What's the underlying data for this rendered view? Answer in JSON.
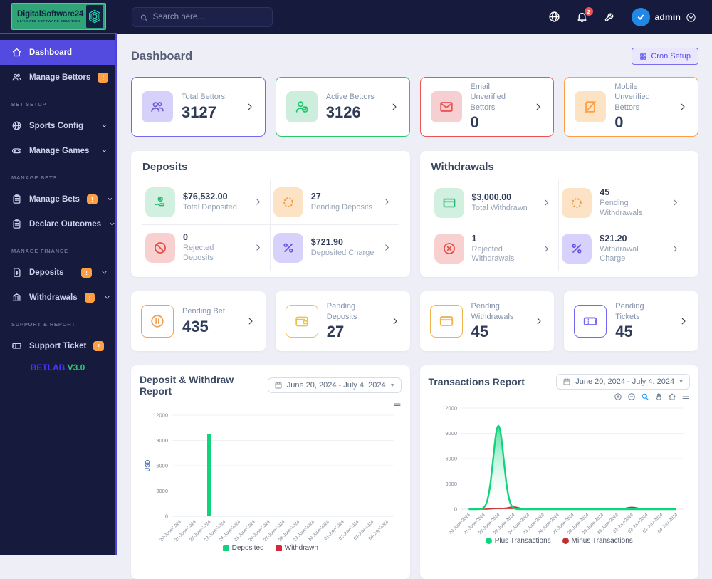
{
  "navbar": {
    "logo_title": "DigitalSoftware24",
    "logo_subtitle": "ULTIMATE SOFTWARE SOLUTION",
    "search_placeholder": "Search here...",
    "notification_count": "2",
    "user_name": "admin"
  },
  "sidebar": {
    "items": [
      {
        "label": "Dashboard",
        "icon": "home",
        "active": true
      },
      {
        "label": "Manage Bettors",
        "icon": "users-group",
        "badge": "!",
        "expandable": true
      },
      {
        "section": "BET SETUP"
      },
      {
        "label": "Sports Config",
        "icon": "globe",
        "expandable": true
      },
      {
        "label": "Manage Games",
        "icon": "gamepad",
        "expandable": true
      },
      {
        "section": "MANAGE BETS"
      },
      {
        "label": "Manage Bets",
        "icon": "clipboard",
        "badge": "!",
        "expandable": true
      },
      {
        "label": "Declare Outcomes",
        "icon": "clipboard",
        "expandable": true
      },
      {
        "section": "MANAGE FINANCE"
      },
      {
        "label": "Deposits",
        "icon": "file-dollar",
        "badge": "!",
        "expandable": true
      },
      {
        "label": "Withdrawals",
        "icon": "bank",
        "badge": "!",
        "expandable": true
      },
      {
        "section": "SUPPORT & REPORT"
      },
      {
        "label": "Support Ticket",
        "icon": "ticket",
        "badge": "!",
        "expandable": true
      }
    ],
    "footer_brand": "BETLAB",
    "footer_version": "V3.0"
  },
  "page": {
    "title": "Dashboard",
    "cron_button_label": "Cron Setup"
  },
  "stats": [
    {
      "label": "Total Bettors",
      "value": "3127",
      "color": "purple",
      "icon": "users-group"
    },
    {
      "label": "Active Bettors",
      "value": "3126",
      "color": "green",
      "icon": "user-check"
    },
    {
      "label": "Email Unverified Bettors",
      "value": "0",
      "color": "red",
      "icon": "envelope"
    },
    {
      "label": "Mobile Unverified Bettors",
      "value": "0",
      "color": "orange",
      "icon": "mobile-slash"
    }
  ],
  "panels": [
    {
      "title": "Deposits",
      "items": [
        {
          "value": "$76,532.00",
          "label": "Total Deposited",
          "icon": "hand-money",
          "tone": "green"
        },
        {
          "value": "27",
          "label": "Pending Deposits",
          "icon": "spinner",
          "tone": "orange"
        },
        {
          "value": "0",
          "label": "Rejected Deposits",
          "icon": "ban",
          "tone": "red"
        },
        {
          "value": "$721.90",
          "label": "Deposited Charge",
          "icon": "percent",
          "tone": "purple"
        }
      ]
    },
    {
      "title": "Withdrawals",
      "items": [
        {
          "value": "$3,000.00",
          "label": "Total Withdrawn",
          "icon": "credit-card",
          "tone": "green"
        },
        {
          "value": "45",
          "label": "Pending Withdrawals",
          "icon": "spinner",
          "tone": "orange"
        },
        {
          "value": "1",
          "label": "Rejected Withdrawals",
          "icon": "x-circle",
          "tone": "red"
        },
        {
          "value": "$21.20",
          "label": "Withdrawal Charge",
          "icon": "percent",
          "tone": "purple"
        }
      ]
    }
  ],
  "pending": [
    {
      "label": "Pending Bet",
      "value": "435",
      "icon": "pause-circle",
      "tone": "orange"
    },
    {
      "label": "Pending Deposits",
      "value": "27",
      "icon": "wallet",
      "tone": "yellow"
    },
    {
      "label": "Pending Withdrawals",
      "value": "45",
      "icon": "credit-card",
      "tone": "gold"
    },
    {
      "label": "Pending Tickets",
      "value": "45",
      "icon": "ticket",
      "tone": "purple"
    }
  ],
  "chart_data": [
    {
      "type": "bar",
      "title": "Deposit & Withdraw Report",
      "date_range": "June 20, 2024 - July 4, 2024",
      "ylabel": "USD",
      "ylim": [
        0,
        12000
      ],
      "yticks": [
        0,
        3000,
        6000,
        9000,
        12000
      ],
      "categories": [
        "20-June-2024",
        "21-June-2024",
        "22-June-2024",
        "23-June-2024",
        "24-June-2024",
        "25-June-2024",
        "26-June-2024",
        "27-June-2024",
        "28-June-2024",
        "29-June-2024",
        "30-June-2024",
        "01-July-2024",
        "02-July-2024",
        "03-July-2024",
        "04-July-2024"
      ],
      "series": [
        {
          "name": "Deposited",
          "color": "#0fd47c",
          "values": [
            0,
            0,
            9800,
            0,
            0,
            0,
            0,
            0,
            0,
            0,
            0,
            0,
            0,
            0,
            0
          ]
        },
        {
          "name": "Withdrawn",
          "color": "#d7263d",
          "values": [
            0,
            0,
            0,
            0,
            0,
            0,
            0,
            0,
            0,
            0,
            0,
            0,
            0,
            0,
            0
          ]
        }
      ],
      "legend_marker": "square",
      "toolbar": [
        "menu"
      ]
    },
    {
      "type": "area",
      "title": "Transactions Report",
      "date_range": "June 20, 2024 - July 4, 2024",
      "ylabel": "",
      "ylim": [
        0,
        12000
      ],
      "yticks": [
        0,
        3000,
        6000,
        9000,
        12000
      ],
      "categories": [
        "20-June-2024",
        "21-June-2024",
        "22-June-2024",
        "23-June-2024",
        "24-June-2024",
        "25-June-2024",
        "26-June-2024",
        "27-June-2024",
        "28-June-2024",
        "29-June-2024",
        "30-June-2024",
        "01-July-2024",
        "02-July-2024",
        "03-July-2024",
        "04-July-2024"
      ],
      "series": [
        {
          "name": "Plus Transactions",
          "color": "#0fd47c",
          "values": [
            0,
            0,
            9900,
            0,
            0,
            0,
            0,
            0,
            0,
            0,
            0,
            0,
            0,
            0,
            0
          ]
        },
        {
          "name": "Minus Transactions",
          "color": "#c0312d",
          "values": [
            0,
            0,
            90,
            260,
            60,
            0,
            0,
            0,
            0,
            0,
            0,
            220,
            60,
            0,
            0
          ]
        }
      ],
      "legend_marker": "circle",
      "toolbar": [
        "zoom-in",
        "zoom-out",
        "selection-zoom",
        "pan",
        "home",
        "menu"
      ]
    }
  ],
  "colors": {
    "accent": "#534be0",
    "badge_orange": "#ff9f43",
    "green": "#28c76f",
    "red": "#ea5455",
    "purple": "#7367f0",
    "chart_green": "#0fd47c",
    "chart_red": "#d7263d"
  }
}
